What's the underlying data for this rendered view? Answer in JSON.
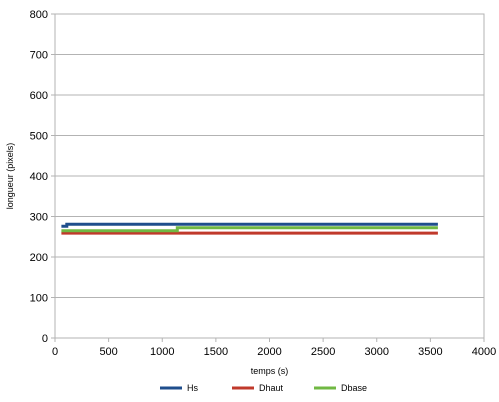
{
  "chart_data": {
    "type": "line",
    "title": "",
    "xlabel": "temps (s)",
    "ylabel": "longueur (pixels)",
    "xlim": [
      0,
      4000
    ],
    "ylim": [
      0,
      800
    ],
    "xticks": [
      0,
      500,
      1000,
      1500,
      2000,
      2500,
      3000,
      3500,
      4000
    ],
    "yticks": [
      0,
      100,
      200,
      300,
      400,
      500,
      600,
      700,
      800
    ],
    "grid": true,
    "legend_position": "bottom",
    "series": [
      {
        "name": "Hs",
        "color": "#1f4e8c",
        "points": [
          [
            60,
            276
          ],
          [
            110,
            276
          ],
          [
            110,
            281
          ],
          [
            3570,
            281
          ]
        ]
      },
      {
        "name": "Dhaut",
        "color": "#c0392b",
        "points": [
          [
            60,
            259
          ],
          [
            3570,
            259
          ]
        ]
      },
      {
        "name": "Dbase",
        "color": "#70b843",
        "points": [
          [
            60,
            265
          ],
          [
            1140,
            265
          ],
          [
            1140,
            272
          ],
          [
            3570,
            272
          ]
        ]
      }
    ]
  }
}
